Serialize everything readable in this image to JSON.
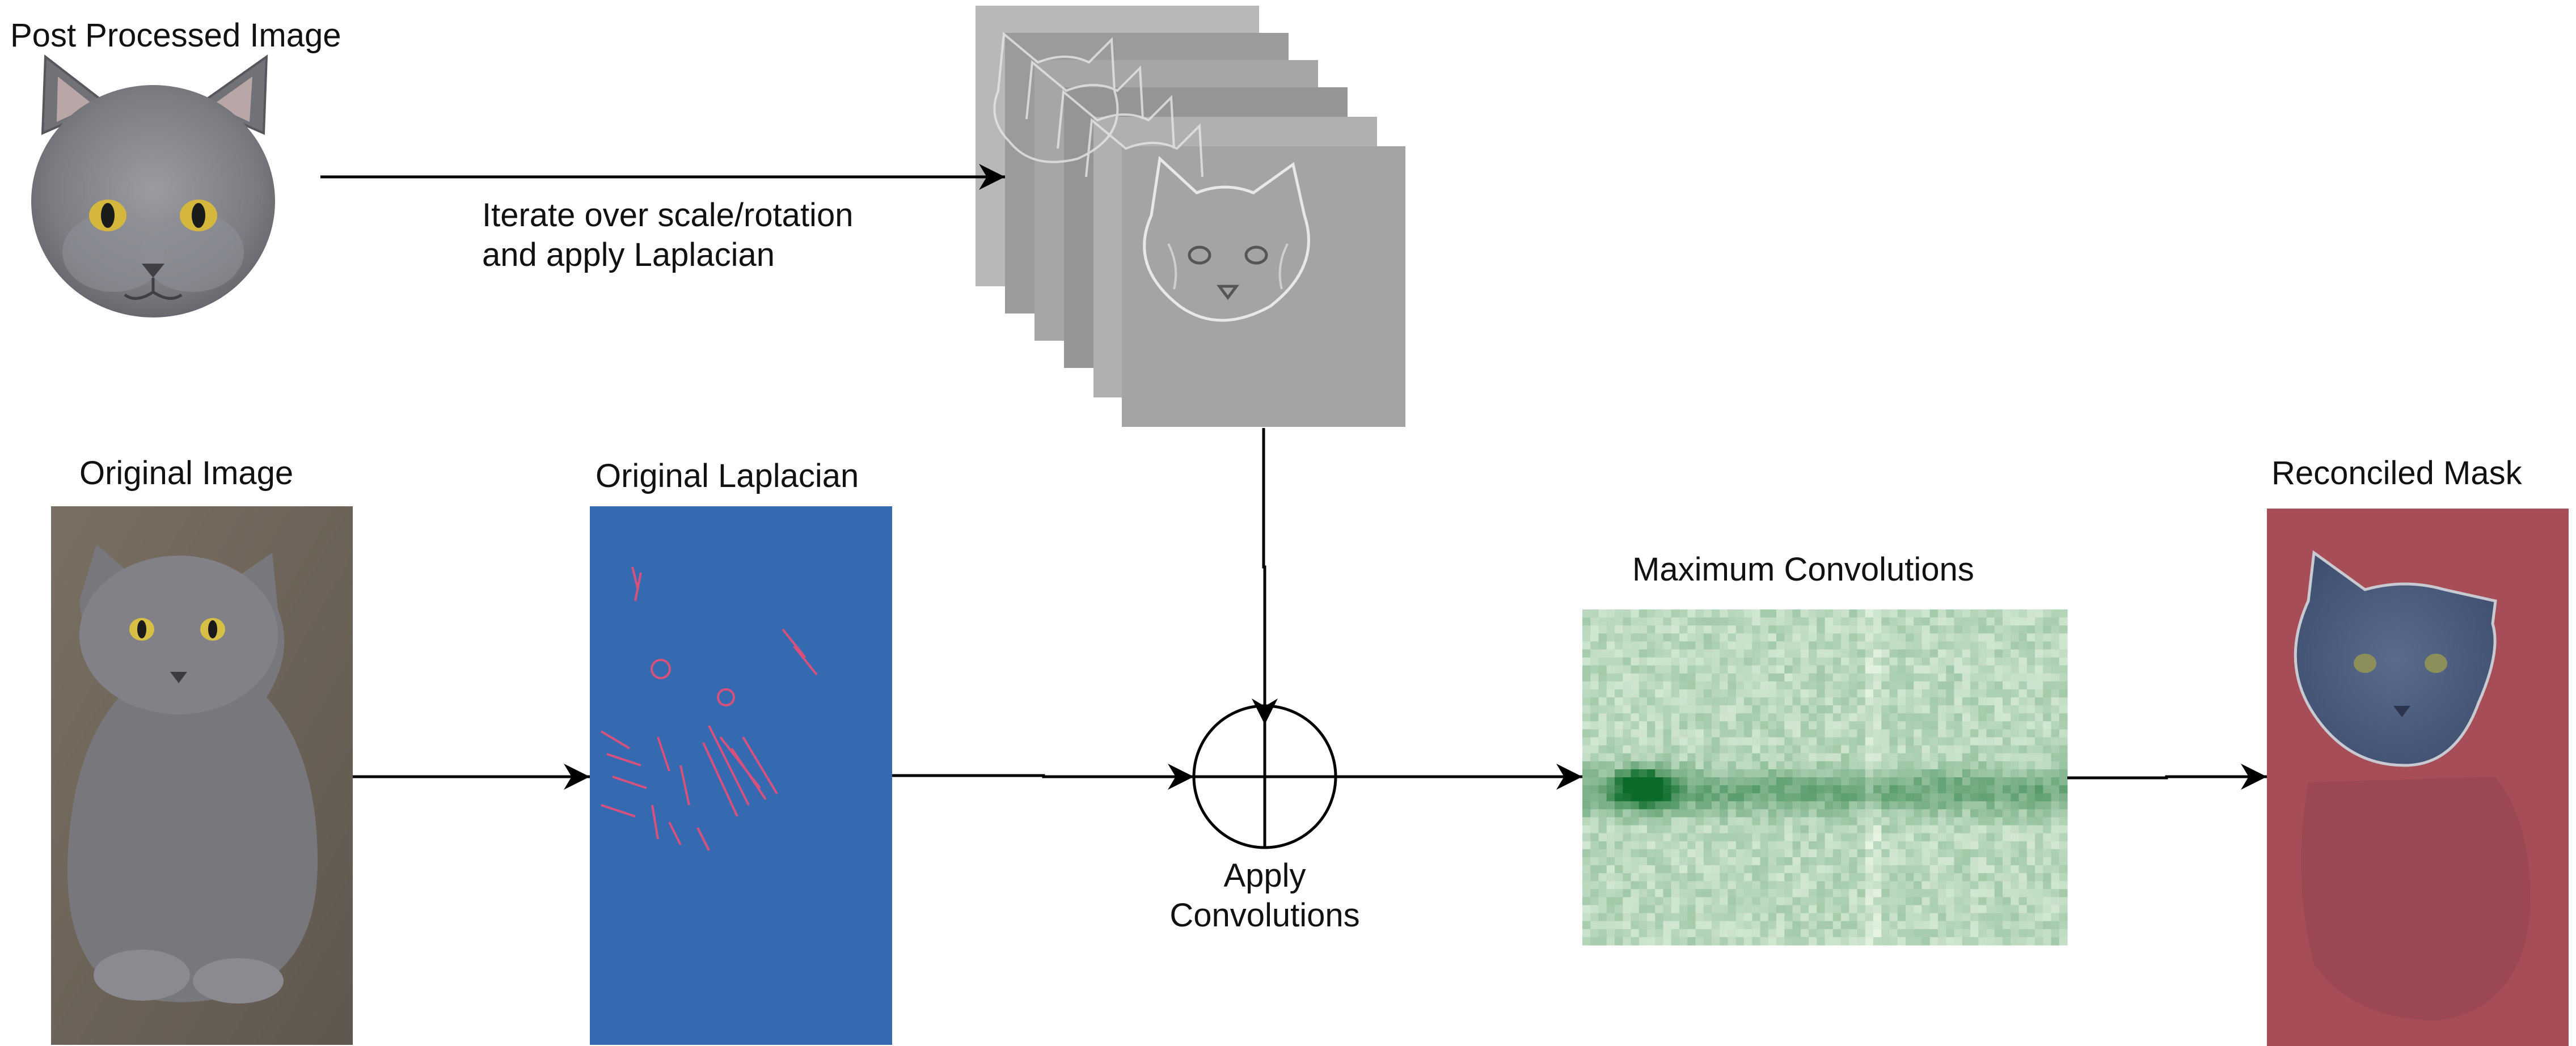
{
  "diagram": {
    "labels": {
      "post_processed_image": "Post Processed Image",
      "iterate_line1": "Iterate over scale/rotation",
      "iterate_line2": "and apply Laplacian",
      "original_image": "Original Image",
      "original_laplacian": "Original Laplacian",
      "maximum_convolutions": "Maximum Convolutions",
      "apply_line1": "Apply",
      "apply_line2": "Convolutions",
      "reconciled_mask": "Reconciled Mask"
    },
    "colors": {
      "arrow": "#000000",
      "laplacian_bg": "#3569b0",
      "laplacian_edges": "#e0507a",
      "heatmap_light": "#e8f5e4",
      "heatmap_dark": "#0b6b2a",
      "mask_outer": "#a64d57",
      "mask_inner": "#4a5d80",
      "cat_gray": "#7d7f85",
      "stack_gray": "#a9a9a9",
      "carpet": "#6b6258"
    },
    "icons": [
      "cat-face-icon",
      "cat-photo-icon",
      "laplacian-image-icon",
      "laplacian-stack-icon",
      "convolution-operator-icon",
      "heatmap-icon",
      "mask-image-icon"
    ]
  }
}
